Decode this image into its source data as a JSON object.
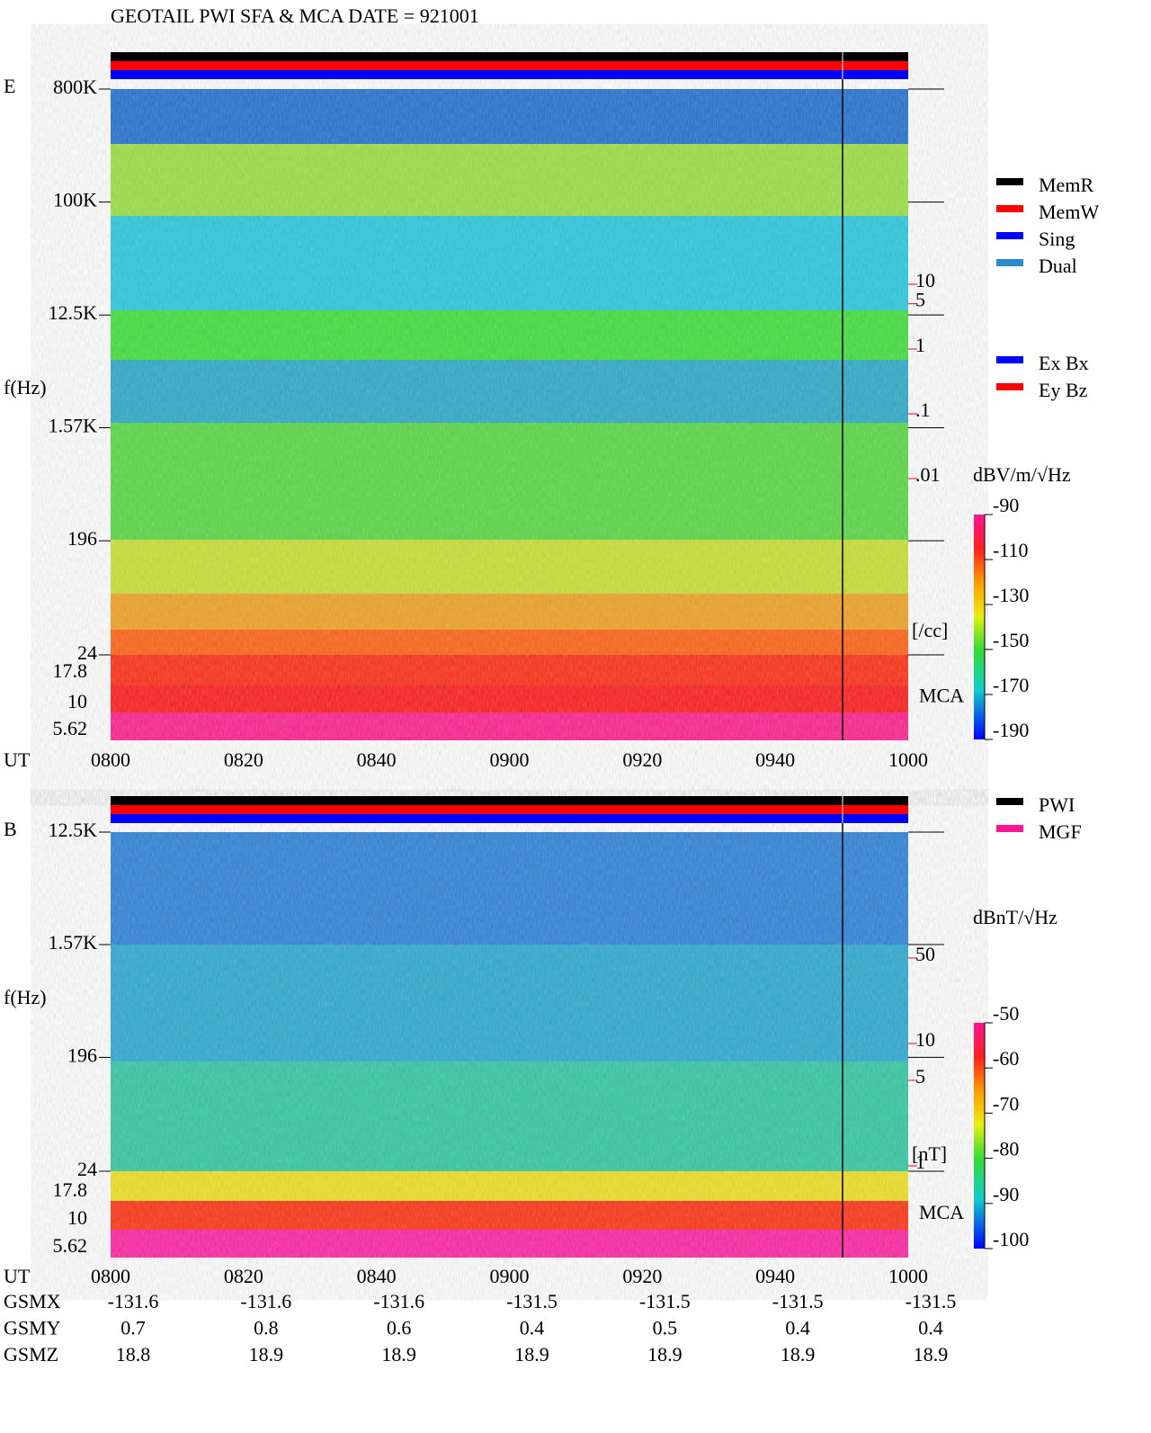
{
  "chart_data": [
    {
      "type": "spectrogram",
      "title": "GEOTAIL  PWI SFA & MCA   DATE = 921001",
      "panel_label": "E",
      "ylabel": "f(Hz)",
      "xlabel": "UT",
      "log_y": true,
      "ylim": [
        24,
        800000
      ],
      "yticks": [
        {
          "value": 800000,
          "label": "800K"
        },
        {
          "value": 100000,
          "label": "100K"
        },
        {
          "value": 12500,
          "label": "12.5K"
        },
        {
          "value": 1570,
          "label": "1.57K"
        },
        196,
        24
      ],
      "mca_label": "MCA",
      "mca_ticks": [
        17.8,
        10,
        5.62
      ],
      "xticks": [
        "0800",
        "0820",
        "0840",
        "0900",
        "0920",
        "0940",
        "1000"
      ],
      "colorbar": {
        "label": "dBV/m/√Hz",
        "lim": [
          -190,
          -90
        ],
        "ticks": [
          -90,
          -110,
          -130,
          -150,
          -170,
          -190
        ]
      },
      "right_axis": {
        "label": "[/cc]",
        "color": "#ff0000",
        "ticks": [
          10,
          5,
          1,
          {
            "value": 0.1,
            "label": ".1"
          },
          {
            "value": 0.01,
            "label": ".01"
          }
        ]
      },
      "legends": [
        [
          {
            "name": "MemR",
            "color": "#000000"
          },
          {
            "name": "MemW",
            "color": "#ff0000"
          },
          {
            "name": "Sing",
            "color": "#0000ff"
          },
          {
            "name": "Dual",
            "color": "#2a8cc8"
          }
        ],
        [
          {
            "name": "Ex Bx",
            "color": "#0000ff"
          },
          {
            "name": "Ey Bz",
            "color": "#ff0000"
          }
        ]
      ]
    },
    {
      "type": "spectrogram",
      "panel_label": "B",
      "ylabel": "f(Hz)",
      "xlabel": "UT",
      "log_y": true,
      "ylim": [
        24,
        12500
      ],
      "yticks": [
        {
          "value": 12500,
          "label": "12.5K"
        },
        {
          "value": 1570,
          "label": "1.57K"
        },
        196,
        24
      ],
      "mca_label": "MCA",
      "mca_ticks": [
        17.8,
        10,
        5.62
      ],
      "xticks": [
        "0800",
        "0820",
        "0840",
        "0900",
        "0920",
        "0940",
        "1000"
      ],
      "colorbar": {
        "label": "dBnT/√Hz",
        "lim": [
          -100,
          -50
        ],
        "ticks": [
          -50,
          -60,
          -70,
          -80,
          -90,
          -100
        ]
      },
      "right_axis": {
        "label": "[nT]",
        "color": "#ff0000",
        "ticks": [
          50,
          10,
          5,
          1
        ]
      },
      "legends": [
        [
          {
            "name": "PWI",
            "color": "#000000"
          },
          {
            "name": "MGF",
            "color": "#ff1493"
          }
        ]
      ],
      "orbit_rows": [
        {
          "name": "GSMX",
          "values": [
            -131.6,
            -131.6,
            -131.6,
            -131.5,
            -131.5,
            -131.5,
            -131.5
          ]
        },
        {
          "name": "GSMY",
          "values": [
            0.7,
            0.8,
            0.6,
            0.4,
            0.5,
            0.4,
            0.4
          ]
        },
        {
          "name": "GSMZ",
          "values": [
            18.8,
            18.9,
            18.9,
            18.9,
            18.9,
            18.9,
            18.9
          ]
        }
      ]
    }
  ]
}
